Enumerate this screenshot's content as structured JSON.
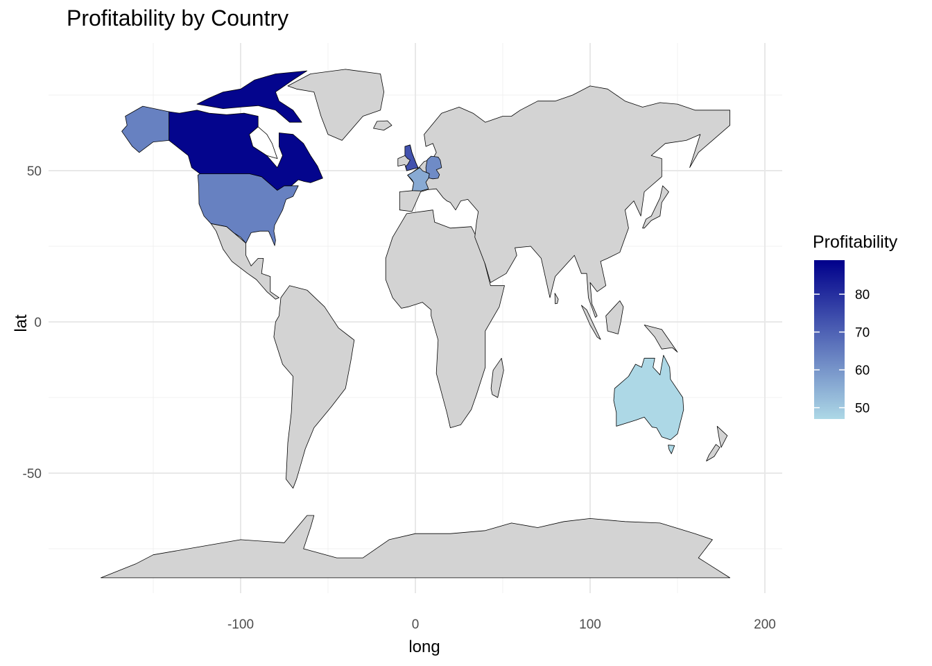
{
  "chart_data": {
    "type": "choropleth",
    "title": "Profitability by Country",
    "xlabel": "long",
    "ylabel": "lat",
    "xlim": [
      -180,
      210
    ],
    "ylim": [
      -88,
      87
    ],
    "x_ticks": [
      -100,
      0,
      100,
      200
    ],
    "x_tick_labels": [
      "-100",
      "0",
      "100",
      "200"
    ],
    "y_ticks": [
      50,
      0,
      -50
    ],
    "y_tick_labels": [
      "50",
      "0",
      "-50"
    ],
    "grid": true,
    "legend": {
      "title": "Profitability",
      "position": "right",
      "range": [
        47,
        89
      ],
      "breaks": [
        80,
        70,
        60,
        50
      ],
      "break_labels": [
        "80",
        "70",
        "60",
        "50"
      ],
      "color_low": "#add8e6",
      "color_high": "#00008b"
    },
    "na_color": "#d3d3d3",
    "border_color": "#000000",
    "regions": [
      {
        "country": "Canada",
        "profitability": 88
      },
      {
        "country": "USA (Alaska)",
        "profitability": 64
      },
      {
        "country": "USA",
        "profitability": 64
      },
      {
        "country": "UK",
        "profitability": 73
      },
      {
        "country": "Germany",
        "profitability": 62
      },
      {
        "country": "France",
        "profitability": 56
      },
      {
        "country": "Australia",
        "profitability": 47
      }
    ]
  }
}
